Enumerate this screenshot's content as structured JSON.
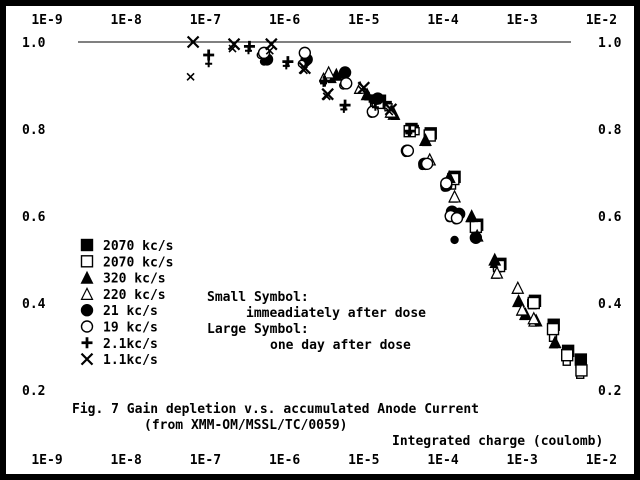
{
  "chart_data": {
    "type": "scatter",
    "xscale": "log",
    "xlim": [
      1e-09,
      0.01
    ],
    "ylim": [
      0.2,
      1.0
    ],
    "x_tick_labels": [
      "1E-9",
      "1E-8",
      "1E-7",
      "1E-6",
      "1E-5",
      "1E-4",
      "1E-3",
      "1E-2"
    ],
    "y_tick_labels": [
      "1.0",
      "0.8",
      "0.6",
      "0.4",
      "0.2"
    ],
    "y_ticks": [
      1.0,
      0.8,
      0.6,
      0.4,
      0.2
    ],
    "xlabel": "Integrated charge  (coulomb)",
    "caption_line1": "Fig. 7   Gain depletion v.s. accumulated Anode Current",
    "caption_line2": "(from  XMM-OM/MSSL/TC/0059)",
    "note_small_title": "Small Symbol:",
    "note_small_text": "immeadiately after dose",
    "note_large_title": "Large Symbol:",
    "note_large_text": "one day after dose",
    "reference_line_y": 1.0,
    "colors": {
      "background": "#000000",
      "panel": "#ffffff",
      "ink": "#000000"
    },
    "series": [
      {
        "name": "2070 kc/s",
        "marker": "filled-square",
        "points": [
          [
            1.6e-05,
            0.865
          ],
          [
            4e-05,
            0.8
          ],
          [
            7e-05,
            0.79
          ],
          [
            0.00014,
            0.69
          ],
          [
            0.00027,
            0.58
          ],
          [
            0.00053,
            0.49
          ],
          [
            0.00145,
            0.405
          ],
          [
            0.0025,
            0.35
          ],
          [
            0.0038,
            0.29
          ],
          [
            0.0055,
            0.27
          ]
        ],
        "small_points": [
          [
            1.3e-05,
            0.87
          ],
          [
            2e-05,
            0.855
          ],
          [
            4.4e-05,
            0.8
          ],
          [
            0.000125,
            0.675
          ],
          [
            0.00025,
            0.575
          ],
          [
            0.00048,
            0.485
          ],
          [
            0.0013,
            0.4
          ],
          [
            0.0024,
            0.345
          ],
          [
            0.0036,
            0.285
          ],
          [
            0.0053,
            0.26
          ]
        ]
      },
      {
        "name": "2070 kc/s",
        "marker": "open-square",
        "points": [
          [
            1.5e-05,
            0.86
          ],
          [
            3.8e-05,
            0.795
          ],
          [
            6.8e-05,
            0.785
          ],
          [
            0.000135,
            0.685
          ],
          [
            0.00026,
            0.575
          ],
          [
            0.00051,
            0.485
          ],
          [
            0.0014,
            0.4
          ],
          [
            0.00245,
            0.34
          ],
          [
            0.0037,
            0.28
          ],
          [
            0.0056,
            0.245
          ]
        ],
        "small_points": [
          [
            1.35e-05,
            0.855
          ],
          [
            2.05e-05,
            0.85
          ],
          [
            4.5e-05,
            0.795
          ],
          [
            0.00013,
            0.67
          ],
          [
            0.000255,
            0.57
          ],
          [
            0.00049,
            0.48
          ],
          [
            0.00135,
            0.395
          ],
          [
            0.00245,
            0.32
          ],
          [
            0.00365,
            0.265
          ],
          [
            0.0054,
            0.235
          ]
        ]
      },
      {
        "name": "320 kc/s",
        "marker": "filled-triangle",
        "points": [
          [
            4.5e-06,
            0.925
          ],
          [
            1.1e-05,
            0.88
          ],
          [
            2.4e-05,
            0.835
          ],
          [
            6e-05,
            0.775
          ],
          [
            0.00012,
            0.69
          ],
          [
            0.00023,
            0.6
          ],
          [
            0.00045,
            0.5
          ],
          [
            0.0009,
            0.405
          ],
          [
            0.0011,
            0.375
          ],
          [
            0.0015,
            0.36
          ],
          [
            0.0026,
            0.31
          ]
        ],
        "small_points": [
          [
            4e-06,
            0.915
          ],
          [
            1.15e-05,
            0.875
          ],
          [
            2.5e-05,
            0.83
          ],
          [
            6.2e-05,
            0.77
          ],
          [
            0.000115,
            0.685
          ],
          [
            0.00022,
            0.595
          ],
          [
            0.00044,
            0.49
          ],
          [
            0.00085,
            0.4
          ],
          [
            0.00105,
            0.37
          ],
          [
            0.00145,
            0.355
          ],
          [
            0.0025,
            0.305
          ]
        ]
      },
      {
        "name": "220 kc/s",
        "marker": "open-triangle",
        "points": [
          [
            3.6e-06,
            0.93
          ],
          [
            9e-06,
            0.895
          ],
          [
            2.2e-05,
            0.84
          ],
          [
            6.8e-05,
            0.73
          ],
          [
            0.00014,
            0.645
          ],
          [
            0.00027,
            0.555
          ],
          [
            0.00048,
            0.47
          ],
          [
            0.00088,
            0.435
          ],
          [
            0.001,
            0.385
          ],
          [
            0.0014,
            0.365
          ]
        ],
        "small_points": [
          [
            3.1e-06,
            0.92
          ],
          [
            8.5e-06,
            0.89
          ],
          [
            2.15e-05,
            0.835
          ],
          [
            6.6e-05,
            0.725
          ],
          [
            0.000135,
            0.64
          ],
          [
            0.00026,
            0.55
          ],
          [
            0.00046,
            0.465
          ],
          [
            0.00083,
            0.43
          ],
          [
            0.00095,
            0.38
          ],
          [
            0.00135,
            0.355
          ]
        ]
      },
      {
        "name": "21 kc/s",
        "marker": "filled-circle",
        "points": [
          [
            6e-07,
            0.96
          ],
          [
            1.9e-06,
            0.96
          ],
          [
            5.8e-06,
            0.93
          ],
          [
            1.5e-05,
            0.87
          ],
          [
            3.5e-05,
            0.75
          ],
          [
            5.8e-05,
            0.72
          ],
          [
            0.00011,
            0.67
          ],
          [
            0.00013,
            0.61
          ],
          [
            0.00016,
            0.605
          ],
          [
            0.00026,
            0.55
          ]
        ],
        "small_points": [
          [
            5.5e-07,
            0.955
          ],
          [
            1.85e-06,
            0.955
          ],
          [
            5.5e-06,
            0.925
          ],
          [
            1.45e-05,
            0.865
          ],
          [
            3.4e-05,
            0.745
          ],
          [
            5.5e-05,
            0.715
          ],
          [
            0.000105,
            0.665
          ],
          [
            0.000125,
            0.605
          ],
          [
            0.000155,
            0.6
          ],
          [
            0.00014,
            0.545
          ]
        ]
      },
      {
        "name": "19 kc/s",
        "marker": "open-circle",
        "points": [
          [
            5.5e-07,
            0.975
          ],
          [
            1.8e-06,
            0.975
          ],
          [
            6e-06,
            0.905
          ],
          [
            1.3e-05,
            0.84
          ],
          [
            3.6e-05,
            0.75
          ],
          [
            6.3e-05,
            0.72
          ],
          [
            0.00011,
            0.675
          ],
          [
            0.000125,
            0.6
          ],
          [
            0.00015,
            0.595
          ]
        ],
        "small_points": [
          [
            5e-07,
            0.97
          ],
          [
            1.65e-06,
            0.95
          ],
          [
            5.5e-06,
            0.9
          ],
          [
            1.25e-05,
            0.835
          ],
          [
            3.4e-05,
            0.745
          ],
          [
            6e-05,
            0.715
          ],
          [
            0.000105,
            0.67
          ],
          [
            0.00012,
            0.595
          ],
          [
            0.000145,
            0.59
          ]
        ]
      },
      {
        "name": "2.1kc/s",
        "marker": "plus",
        "points": [
          [
            1.1e-07,
            0.97
          ],
          [
            3.6e-07,
            0.99
          ],
          [
            1.1e-06,
            0.955
          ],
          [
            3.2e-06,
            0.91
          ],
          [
            5.8e-06,
            0.855
          ],
          [
            1.4e-05,
            0.86
          ],
          [
            3.8e-05,
            0.795
          ]
        ],
        "small_points": [
          [
            1.1e-07,
            0.95
          ],
          [
            3.5e-07,
            0.98
          ],
          [
            1.05e-06,
            0.945
          ],
          [
            3.1e-06,
            0.905
          ],
          [
            5.6e-06,
            0.845
          ],
          [
            1.4e-05,
            0.85
          ],
          [
            3.7e-05,
            0.79
          ]
        ]
      },
      {
        "name": "1.1kc/s",
        "marker": "x",
        "points": [
          [
            7e-08,
            1.0
          ],
          [
            2.3e-07,
            0.995
          ],
          [
            6.8e-07,
            0.995
          ],
          [
            1.8e-06,
            0.94
          ],
          [
            3.5e-06,
            0.88
          ],
          [
            1e-05,
            0.895
          ],
          [
            2.2e-05,
            0.845
          ]
        ],
        "small_points": [
          [
            6.5e-08,
            0.92
          ],
          [
            2.2e-07,
            0.985
          ],
          [
            6.5e-07,
            0.98
          ],
          [
            1.75e-06,
            0.935
          ],
          [
            3.4e-06,
            0.875
          ],
          [
            9.5e-06,
            0.89
          ],
          [
            2.1e-05,
            0.84
          ]
        ]
      }
    ]
  }
}
